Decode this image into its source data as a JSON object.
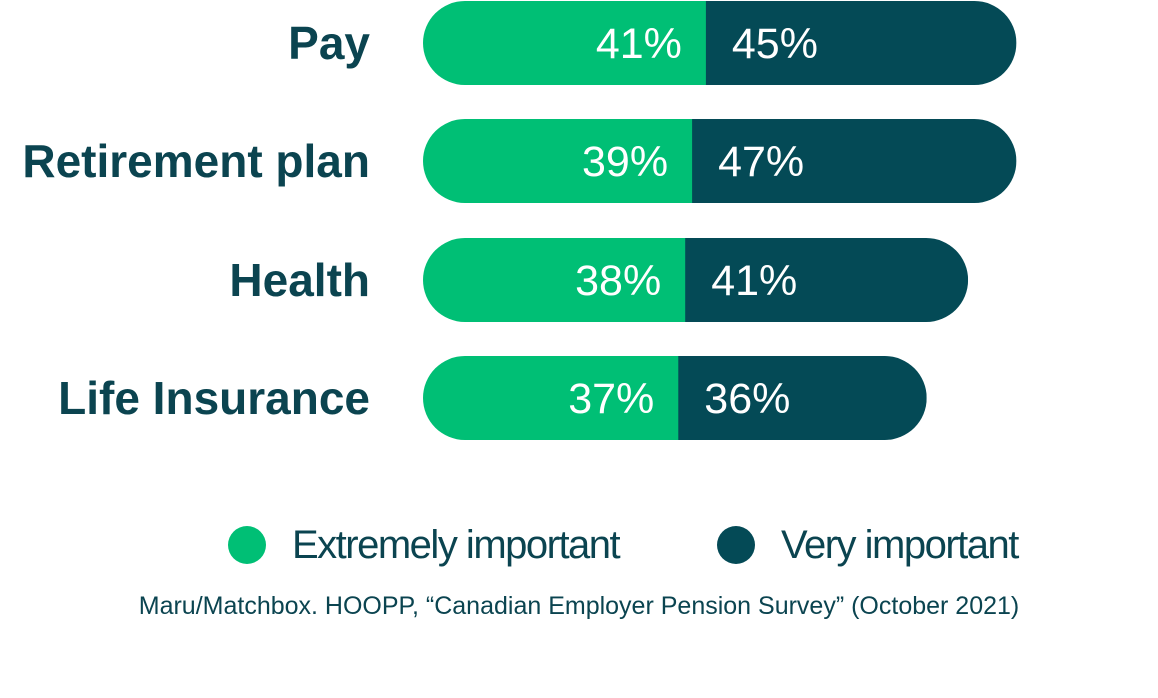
{
  "colors": {
    "extremely": "#00bf75",
    "very": "#044a56",
    "text": "#0b4450"
  },
  "chart_data": {
    "type": "bar",
    "orientation": "horizontal",
    "stacked": true,
    "categories": [
      "Pay",
      "Retirement plan",
      "Health",
      "Life Insurance"
    ],
    "series": [
      {
        "name": "Extremely important",
        "values": [
          41,
          39,
          38,
          37
        ]
      },
      {
        "name": "Very important",
        "values": [
          45,
          47,
          41,
          36
        ]
      }
    ],
    "value_suffix": "%",
    "legend_position": "bottom"
  },
  "legend": {
    "items": [
      {
        "label": "Extremely important"
      },
      {
        "label": "Very important"
      }
    ]
  },
  "source": "Maru/Matchbox. HOOPP, “Canadian Employer Pension Survey” (October 2021)"
}
